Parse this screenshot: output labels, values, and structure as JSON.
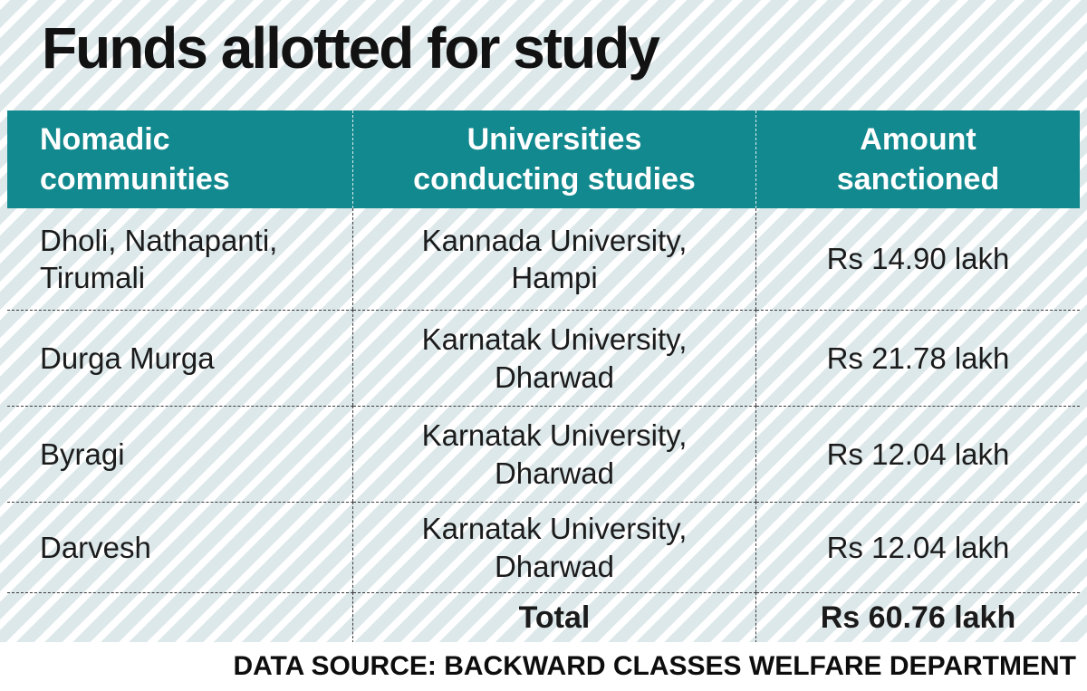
{
  "title": "Funds allotted for study",
  "colors": {
    "header_bg": "#12898e",
    "stripe_light": "#ffffff",
    "stripe_dark": "#dde8eb",
    "text": "#1b1b1b"
  },
  "table": {
    "headers": [
      "Nomadic\ncommunities",
      "Universities\nconducting studies",
      "Amount\nsanctioned"
    ],
    "rows": [
      {
        "community": "Dholi, Nathapanti,\nTirumali",
        "university": "Kannada University,\nHampi",
        "amount": "Rs 14.90 lakh"
      },
      {
        "community": "Durga Murga",
        "university": "Karnatak University,\nDharwad",
        "amount": "Rs 21.78 lakh"
      },
      {
        "community": "Byragi",
        "university": "Karnatak University,\nDharwad",
        "amount": "Rs 12.04 lakh"
      },
      {
        "community": "Darvesh",
        "university": "Karnatak University,\nDharwad",
        "amount": "Rs 12.04 lakh"
      }
    ],
    "total_label": "Total",
    "total_amount": "Rs 60.76 lakh"
  },
  "footer": {
    "source": "DATA SOURCE: BACKWARD CLASSES WELFARE DEPARTMENT"
  },
  "chart_data": {
    "type": "table",
    "title": "Funds allotted for study",
    "columns": [
      "Nomadic communities",
      "Universities conducting studies",
      "Amount sanctioned"
    ],
    "rows": [
      [
        "Dholi, Nathapanti, Tirumali",
        "Kannada University, Hampi",
        "Rs 14.90 lakh"
      ],
      [
        "Durga Murga",
        "Karnatak University, Dharwad",
        "Rs 21.78 lakh"
      ],
      [
        "Byragi",
        "Karnatak University, Dharwad",
        "Rs 12.04 lakh"
      ],
      [
        "Darvesh",
        "Karnatak University, Dharwad",
        "Rs 12.04 lakh"
      ]
    ],
    "amounts_lakh": [
      14.9,
      21.78,
      12.04,
      12.04
    ],
    "total_lakh": 60.76,
    "source": "DATA SOURCE: BACKWARD CLASSES WELFARE DEPARTMENT"
  }
}
